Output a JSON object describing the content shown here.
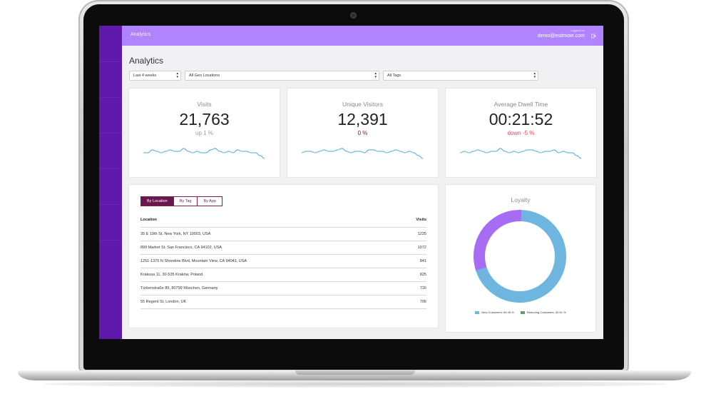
{
  "header": {
    "title": "Analytics",
    "small_text": "Logged in as",
    "email": "demo@estimote.com"
  },
  "page": {
    "title": "Analytics"
  },
  "filters": {
    "period": "Last 4 weeks",
    "location": "All Geo Locations",
    "tags": "All Tags"
  },
  "stats": [
    {
      "label": "Visits",
      "value": "21,763",
      "change": "up 1 %",
      "change_color": "#9a9a9a",
      "sparkline": [
        5,
        5,
        7,
        6,
        5,
        6,
        7,
        6,
        6,
        8,
        6,
        5,
        6,
        5,
        5,
        7,
        8,
        6,
        5,
        6,
        5,
        7,
        6,
        6,
        5,
        5,
        3,
        1
      ]
    },
    {
      "label": "Unique Visitors",
      "value": "12,391",
      "change": "0 %",
      "change_color": "#6c164f",
      "sparkline": [
        5,
        6,
        6,
        5,
        6,
        7,
        6,
        6,
        7,
        8,
        6,
        5,
        6,
        6,
        5,
        7,
        7,
        6,
        6,
        5,
        6,
        7,
        6,
        5,
        6,
        5,
        3,
        1
      ]
    },
    {
      "label": "Average Dwell Time",
      "value": "00:21:52",
      "change": "down -5 %",
      "change_color": "#e04a5a",
      "sparkline": [
        5,
        6,
        5,
        6,
        7,
        6,
        5,
        6,
        6,
        8,
        6,
        5,
        6,
        5,
        6,
        7,
        7,
        6,
        5,
        6,
        6,
        7,
        5,
        6,
        5,
        5,
        3,
        1
      ]
    }
  ],
  "tabs": [
    "By Location",
    "By Tag",
    "By App"
  ],
  "active_tab": 0,
  "table": {
    "headers": {
      "location": "Location",
      "visits": "Visits"
    },
    "rows": [
      {
        "location": "35 E 19th St, New York, NY 10003, USA",
        "visits": "1225"
      },
      {
        "location": "899 Market St, San Francisco, CA 94102, USA",
        "visits": "1072"
      },
      {
        "location": "1251-1375 N Shoreline Blvd, Mountain View, CA 94043, USA",
        "visits": "841"
      },
      {
        "location": "Krakusa 11, 30-535 Kraków, Poland",
        "visits": "825"
      },
      {
        "location": "Türkenstraße 89, 80799 München, Germany",
        "visits": "716"
      },
      {
        "location": "55 Regent St, London, UK",
        "visits": "706"
      }
    ]
  },
  "loyalty": {
    "title": "Loyalty",
    "new_label": "New Customers: 69.45 %",
    "returning_label": "Returning Customers: 30.51 %",
    "new_pct": 69.45,
    "returning_pct": 30.51,
    "new_color": "#6eb6e0",
    "returning_color": "#a66cf2",
    "returning_legend_color": "#6a9a6a"
  },
  "colors": {
    "sidebar": "#5f19ad",
    "topbar": "#b084ff",
    "sparkline": "#4da6d8",
    "accent": "#6c164f"
  }
}
